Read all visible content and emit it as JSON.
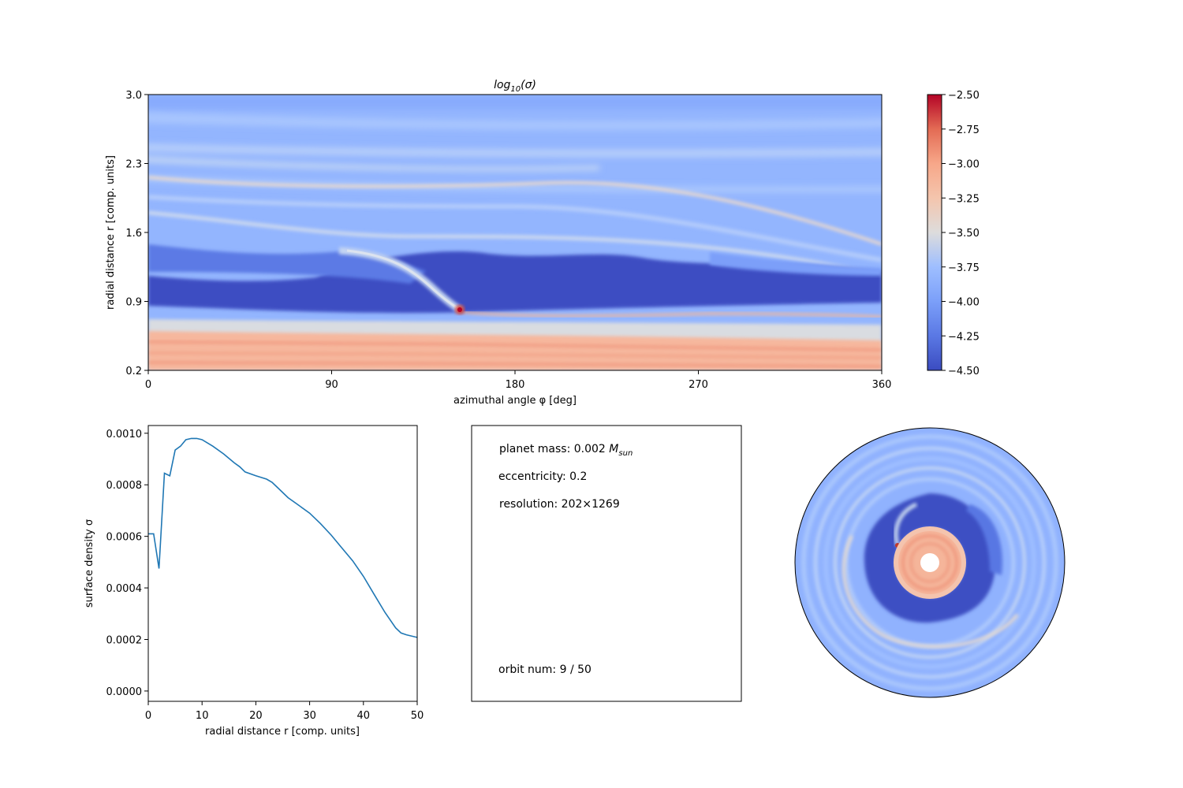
{
  "colors": {
    "cmap_low": "#3b4cc0",
    "cmap_mid": "#dddcdc",
    "cmap_high": "#b40426",
    "line": "#1f77b4"
  },
  "chart_data": [
    {
      "type": "heatmap",
      "title": "log10(σ)",
      "title_main": "log",
      "title_sub": "10",
      "title_rest": "(σ)",
      "xlabel": "azimuthal angle φ [deg]",
      "ylabel": "radial distance r [comp. units]",
      "xlim": [
        0,
        360
      ],
      "ylim": [
        0.2,
        3.0
      ],
      "xticks": [
        "0",
        "90",
        "180",
        "270",
        "360"
      ],
      "yticks": [
        "0.2",
        "0.9",
        "1.6",
        "2.3",
        "3.0"
      ],
      "colorbar": {
        "range": [
          -4.5,
          -2.5
        ],
        "ticks": [
          "-4.50",
          "-4.25",
          "-4.00",
          "-3.75",
          "-3.50",
          "-3.25",
          "-3.00",
          "-2.75",
          "-2.50"
        ]
      },
      "features": {
        "inner_disk_level": -3.2,
        "gap_level": -4.5,
        "outer_disk_level": -3.9,
        "planet": {
          "phi": 152,
          "r": 0.95,
          "level": -2.8
        }
      }
    },
    {
      "type": "line",
      "xlabel": "radial distance r [comp. units]",
      "ylabel": "surface density σ",
      "xlim": [
        0,
        50
      ],
      "ylim": [
        -4e-05,
        0.00103
      ],
      "xticks": [
        "0",
        "10",
        "20",
        "30",
        "40",
        "50"
      ],
      "yticks": [
        "0.0000",
        "0.0002",
        "0.0004",
        "0.0006",
        "0.0008",
        "0.0010"
      ],
      "series": [
        {
          "x": [
            0,
            1,
            2,
            3,
            4,
            5,
            6,
            7,
            8,
            9,
            10,
            12,
            14,
            16,
            17,
            18,
            20,
            22,
            23,
            24,
            26,
            28,
            30,
            32,
            34,
            36,
            38,
            40,
            42,
            44,
            46,
            47,
            48,
            50
          ],
          "values": [
            0.00061,
            0.00061,
            0.000475,
            0.000845,
            0.000835,
            0.000935,
            0.00095,
            0.000975,
            0.00098,
            0.00098,
            0.000975,
            0.00095,
            0.00092,
            0.000885,
            0.00087,
            0.00085,
            0.000835,
            0.000822,
            0.00081,
            0.00079,
            0.00075,
            0.00072,
            0.00069,
            0.00065,
            0.000605,
            0.000555,
            0.000505,
            0.000445,
            0.000375,
            0.000305,
            0.000245,
            0.000225,
            0.000218,
            0.000208
          ]
        }
      ]
    }
  ],
  "info": {
    "planet_mass_prefix": "planet mass: 0.002 ",
    "planet_mass_symbol": "M",
    "planet_mass_sub": "sun",
    "eccentricity": "eccentricity: 0.2",
    "resolution": "resolution: 202×1269",
    "orbit": "orbit num: 9 / 50"
  }
}
